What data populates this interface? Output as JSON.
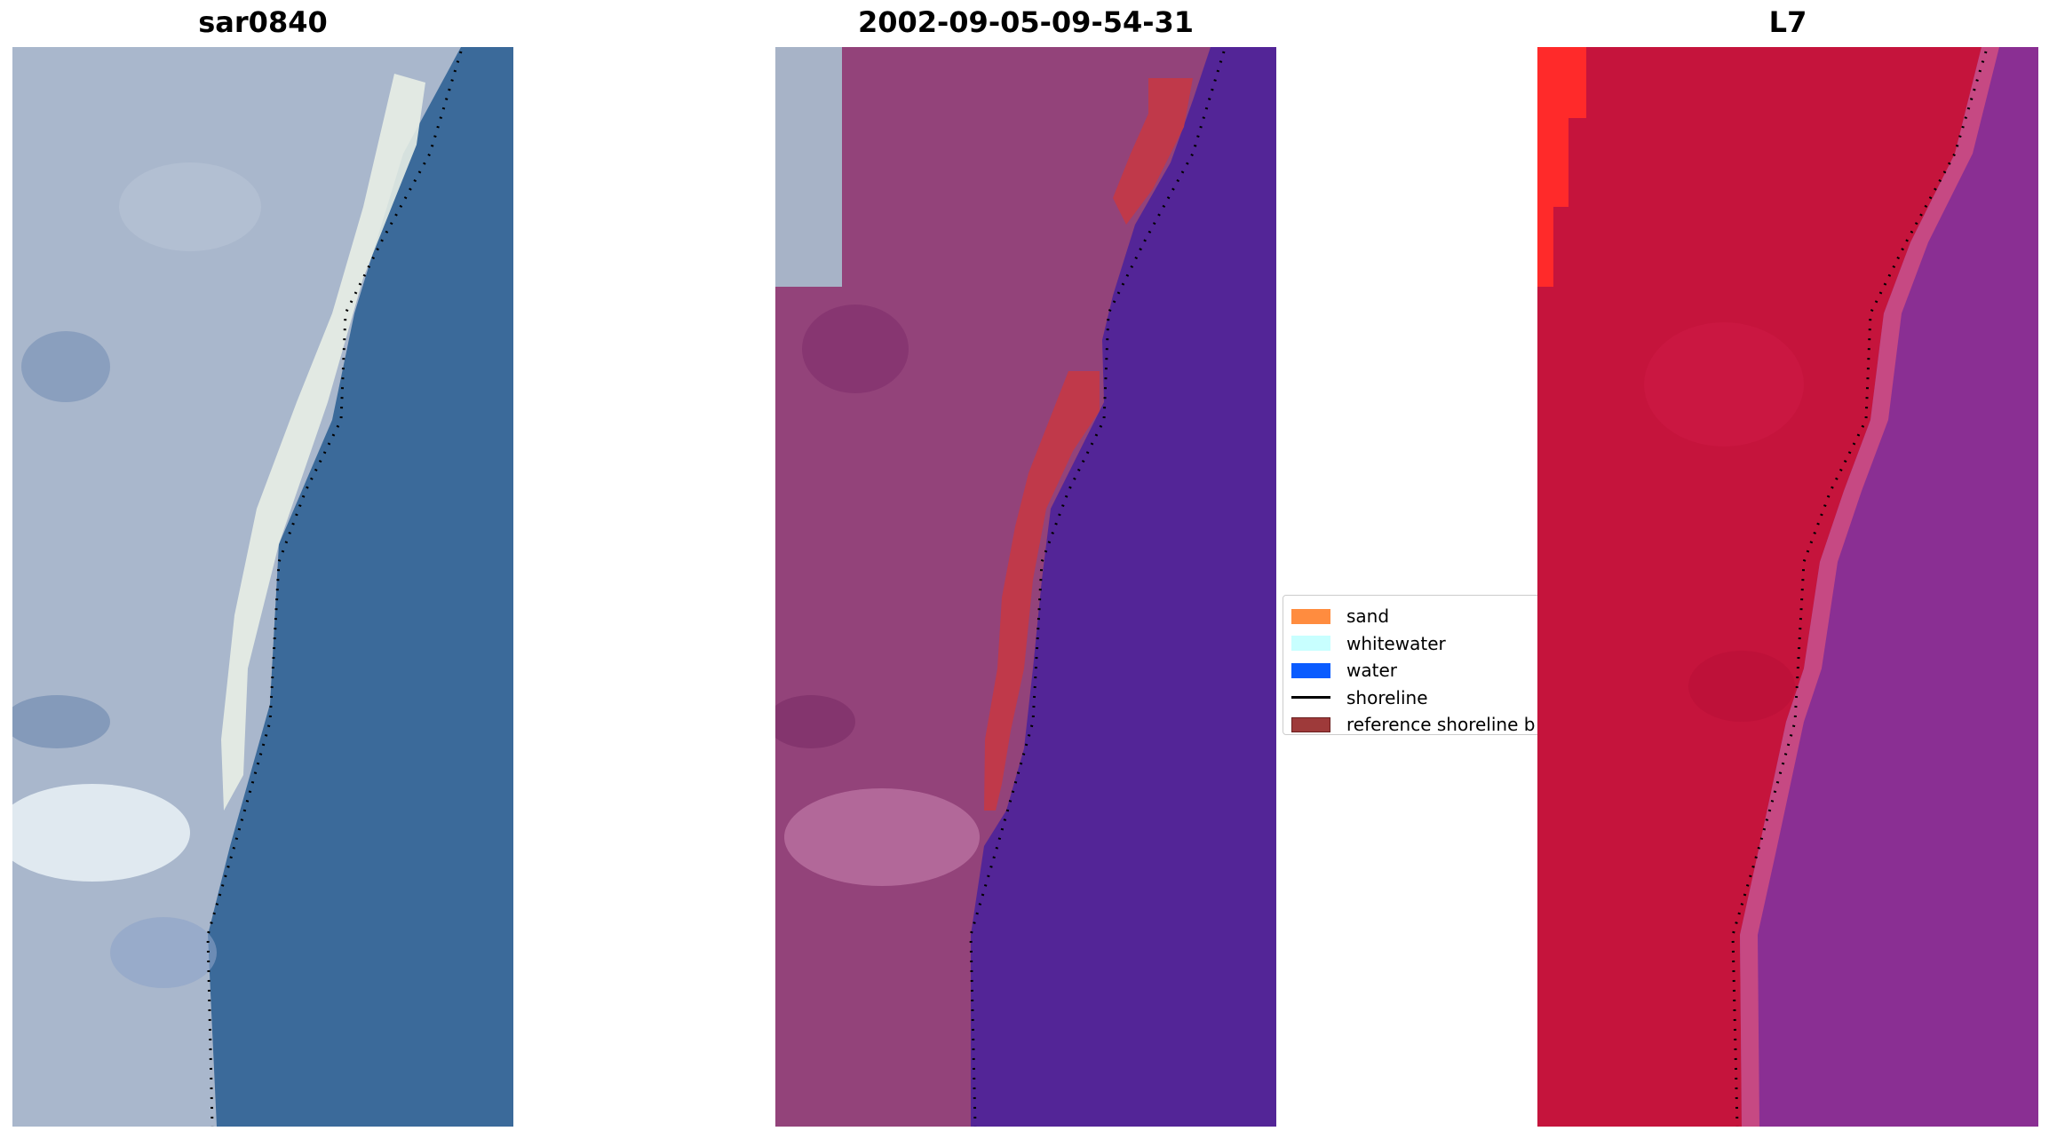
{
  "panels": [
    {
      "title": "sar0840"
    },
    {
      "title": "2002-09-05-09-54-31"
    },
    {
      "title": "L7"
    }
  ],
  "legend": {
    "items": [
      {
        "label": "sand",
        "color": "#ff8c3f"
      },
      {
        "label": "whitewater",
        "color": "#c8ffff"
      },
      {
        "label": "water",
        "color": "#0a5cff"
      },
      {
        "label": "shoreline",
        "color": "#000000"
      },
      {
        "label": "reference shoreline b",
        "color": "#9e3a3a"
      }
    ]
  },
  "colors": {
    "rgb_land": "#a9b7cc",
    "rgb_water": "#3b6a9a",
    "rgb_beach": "#e8eee6",
    "class_land": "#93437a",
    "class_water": "#532597",
    "class_buffer": "#c0394a",
    "nir_land": "#c5143c",
    "nir_water": "#8a2f93",
    "nir_bright": "#ff2a2a"
  }
}
